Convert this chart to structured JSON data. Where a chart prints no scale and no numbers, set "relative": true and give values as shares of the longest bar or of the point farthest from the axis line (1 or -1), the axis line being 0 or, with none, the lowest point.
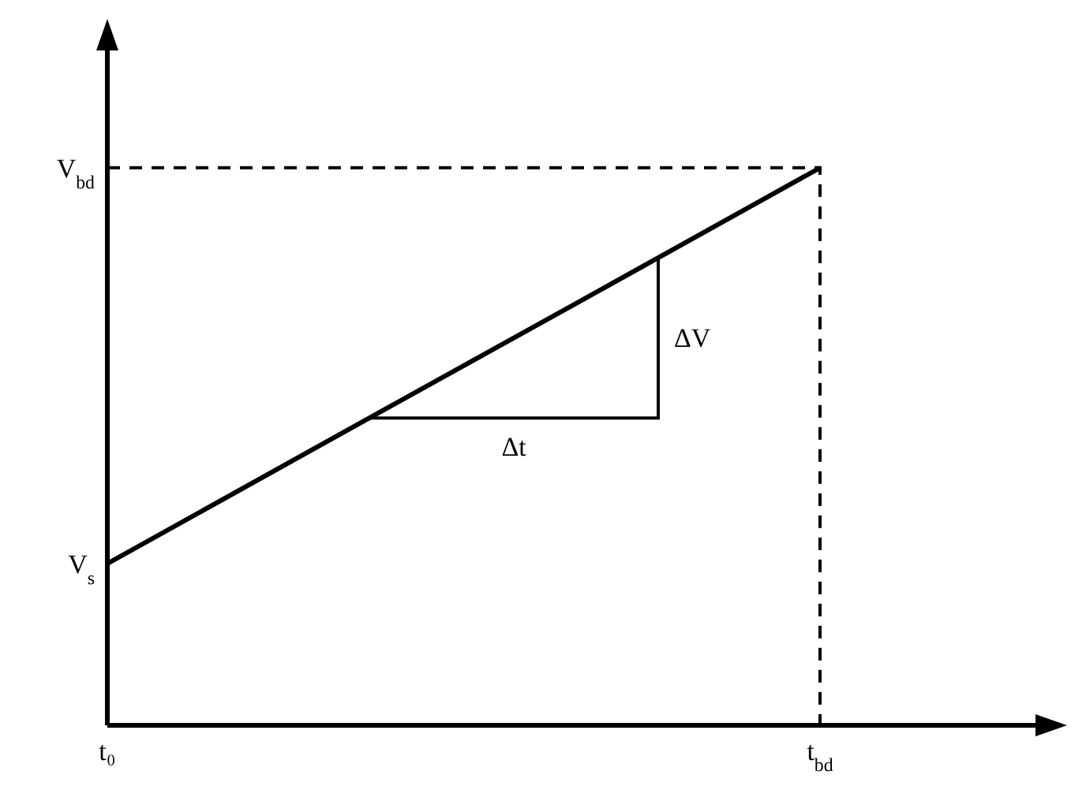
{
  "chart_data": {
    "type": "line",
    "relative": true,
    "categories": [
      "t₀",
      null,
      null,
      "t$_{bd}$",
      null
    ],
    "series": [
      {
        "color": "#000000",
        "values": [
          0.29,
          0.527,
          0.763,
          1,
          null
        ]
      }
    ],
    "marker": "none",
    "line_style": "solid",
    "annotations": [
      "V$_{s}$",
      "V$_{bd}$",
      "Δt",
      "ΔV"
    ]
  }
}
